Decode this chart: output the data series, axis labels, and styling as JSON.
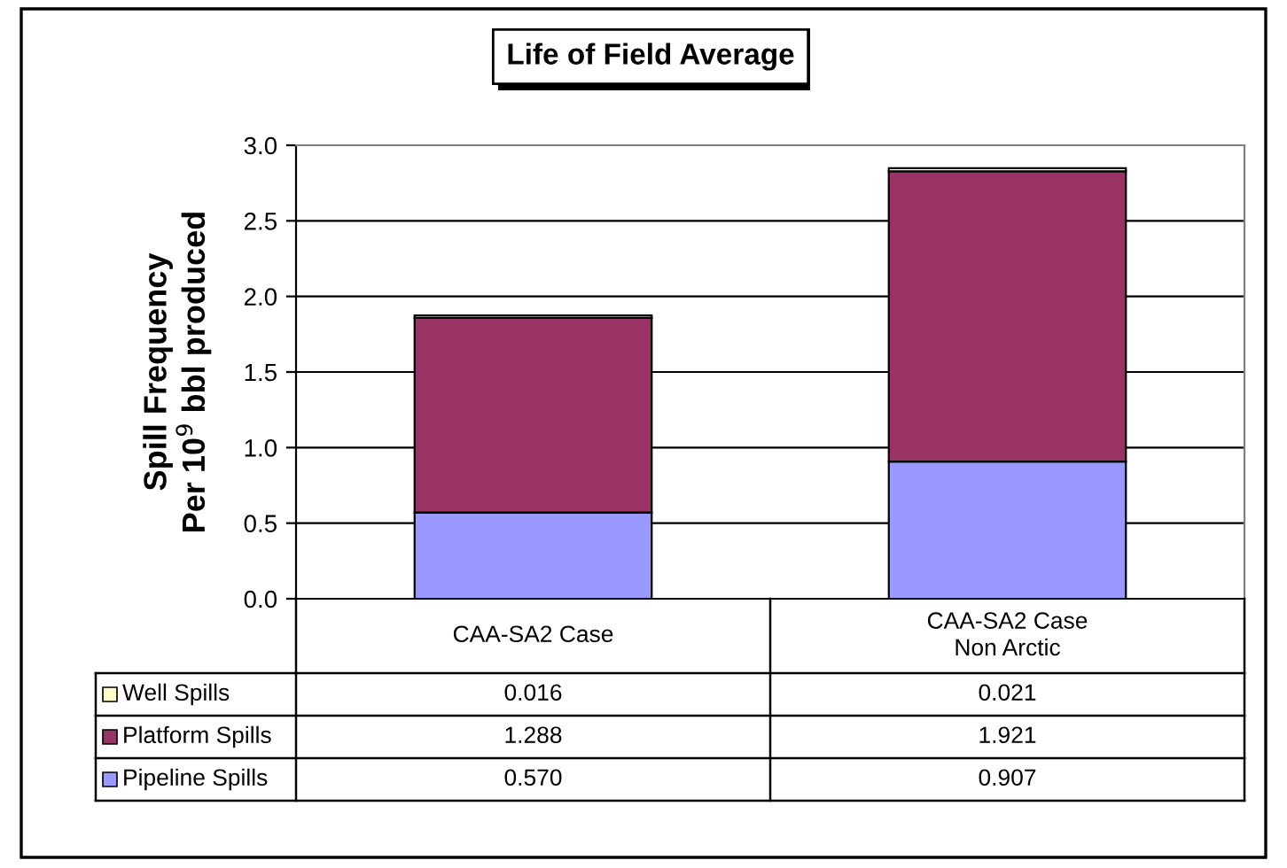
{
  "chart_data": {
    "type": "bar",
    "title": "Life of Field Average",
    "ylabel": "Spill Frequency\nPer 10$^{9}$ bbl produced",
    "categories": [
      "CAA-SA2 Case",
      "CAA-SA2 Case\nNon Arctic"
    ],
    "stacked": true,
    "ylim": [
      0,
      3.0
    ],
    "yticks": [
      {
        "value": 0,
        "label": "0.0"
      },
      {
        "value": 0.5,
        "label": "0.5"
      },
      {
        "value": 1.0,
        "label": "1.0"
      },
      {
        "value": 1.5,
        "label": "1.5"
      },
      {
        "value": 2.0,
        "label": "2.0"
      },
      {
        "value": 2.5,
        "label": "2.5"
      },
      {
        "value": 3.0,
        "label": "3.0"
      }
    ],
    "grid": "y",
    "legend": "bottom",
    "series": [
      {
        "name": "Pipeline Spills",
        "color": "#9999ff",
        "values": [
          0.57,
          0.907
        ],
        "value_labels": [
          "0.570",
          "0.907"
        ]
      },
      {
        "name": "Platform Spills",
        "color": "#993366",
        "values": [
          1.288,
          1.921
        ],
        "value_labels": [
          "1.288",
          "1.921"
        ]
      },
      {
        "name": "Well Spills",
        "color": "#ffffcc",
        "values": [
          0.016,
          0.021
        ],
        "value_labels": [
          "0.016",
          "0.021"
        ]
      }
    ]
  }
}
